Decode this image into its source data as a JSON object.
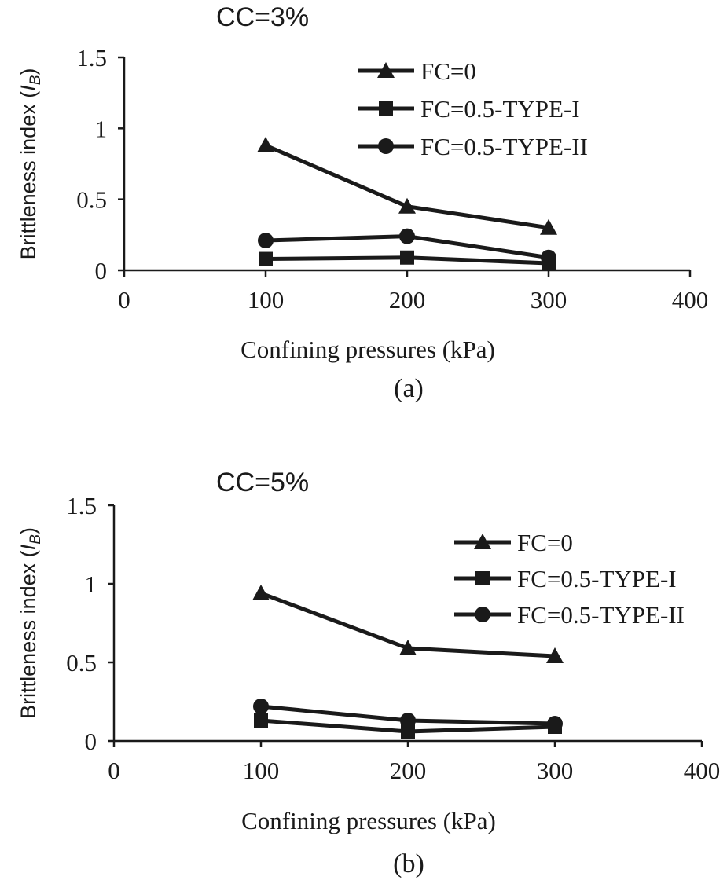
{
  "chart_data": [
    {
      "type": "line",
      "panel": "(a)",
      "title": "CC=3%",
      "xlabel": "Confining pressures (kPa)",
      "ylabel": "Brittleness index (I_B)",
      "ylabel_main": "Brittleness index (",
      "ylabel_sym": "I",
      "ylabel_sub": "B",
      "ylabel_close": ")",
      "xlim": [
        0,
        400
      ],
      "ylim": [
        0,
        1.5
      ],
      "xticks": [
        "0",
        "100",
        "200",
        "300",
        "400"
      ],
      "yticks": [
        "0",
        "0.5",
        "1",
        "1.5"
      ],
      "grid": false,
      "legend_position": "top-right",
      "x": [
        100,
        200,
        300
      ],
      "series": [
        {
          "name": "FC=0",
          "marker": "triangle",
          "values": [
            0.88,
            0.45,
            0.3
          ]
        },
        {
          "name": "FC=0.5-TYPE-I",
          "marker": "square",
          "values": [
            0.08,
            0.09,
            0.05
          ]
        },
        {
          "name": "FC=0.5-TYPE-II",
          "marker": "circle",
          "values": [
            0.21,
            0.24,
            0.09
          ]
        }
      ],
      "caption": "(a)"
    },
    {
      "type": "line",
      "panel": "(b)",
      "title": "CC=5%",
      "xlabel": "Confining pressures (kPa)",
      "ylabel": "Brittleness index (I_B)",
      "ylabel_main": "Brittleness index (",
      "ylabel_sym": "I",
      "ylabel_sub": "B",
      "ylabel_close": ")",
      "xlim": [
        0,
        400
      ],
      "ylim": [
        0,
        1.5
      ],
      "xticks": [
        "0",
        "100",
        "200",
        "300",
        "400"
      ],
      "yticks": [
        "0",
        "0.5",
        "1",
        "1.5"
      ],
      "grid": false,
      "legend_position": "top-right",
      "x": [
        100,
        200,
        300
      ],
      "series": [
        {
          "name": "FC=0",
          "marker": "triangle",
          "values": [
            0.94,
            0.59,
            0.54
          ]
        },
        {
          "name": "FC=0.5-TYPE-I",
          "marker": "square",
          "values": [
            0.13,
            0.06,
            0.09
          ]
        },
        {
          "name": "FC=0.5-TYPE-II",
          "marker": "circle",
          "values": [
            0.22,
            0.13,
            0.11
          ]
        }
      ],
      "caption": "(b)"
    }
  ],
  "colors": {
    "line": "#1a1a1a",
    "background": "#ffffff"
  }
}
